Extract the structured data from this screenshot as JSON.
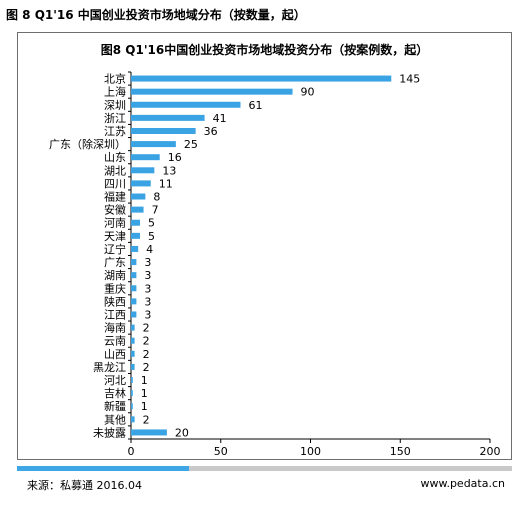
{
  "figure_title": "图 8 Q1'16 中国创业投资市场地域分布（按数量，起）",
  "source_text": "来源：私募通 2016.04",
  "site_text": "www.pedata.cn",
  "colors": {
    "bar": "#3aa3e3",
    "accent": "#3ea6e4",
    "track": "#c9c9c9"
  },
  "chart_data": {
    "type": "bar",
    "orientation": "horizontal",
    "title": "图8 Q1'16中国创业投资市场地域投资分布（按案例数，起）",
    "xlabel": "",
    "ylabel": "",
    "xlim": [
      0,
      200
    ],
    "xticks": [
      0,
      50,
      100,
      150,
      200
    ],
    "grid": false,
    "categories": [
      "北京",
      "上海",
      "深圳",
      "浙江",
      "江苏",
      "广东（除深圳）",
      "山东",
      "湖北",
      "四川",
      "福建",
      "安徽",
      "河南",
      "天津",
      "辽宁",
      "广东",
      "湖南",
      "重庆",
      "陕西",
      "江西",
      "海南",
      "云南",
      "山西",
      "黑龙江",
      "河北",
      "吉林",
      "新疆",
      "其他",
      "未披露"
    ],
    "values": [
      145,
      90,
      61,
      41,
      36,
      25,
      16,
      13,
      11,
      8,
      7,
      5,
      5,
      4,
      3,
      3,
      3,
      3,
      3,
      2,
      2,
      2,
      2,
      1,
      1,
      1,
      2,
      20
    ]
  }
}
